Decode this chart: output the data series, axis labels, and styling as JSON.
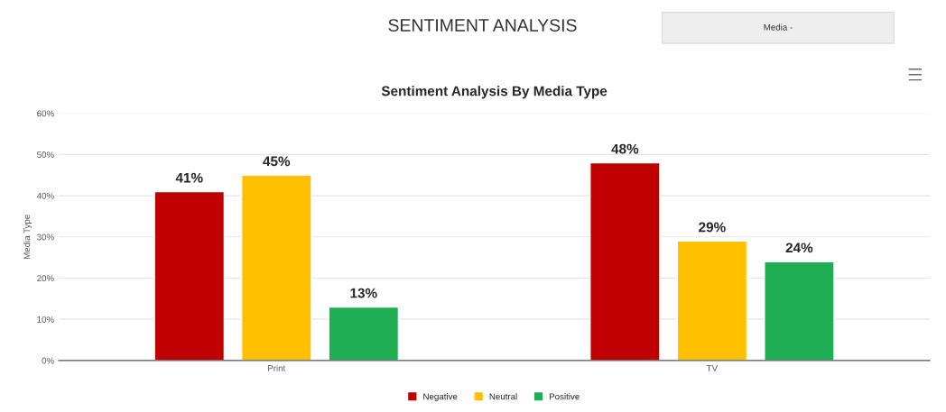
{
  "chart_data": {
    "type": "bar",
    "title": "SENTIMENT ANALYSIS",
    "subtitle": "Sentiment Analysis By Media Type",
    "ylabel": "Media Type",
    "categories": [
      "Print",
      "TV"
    ],
    "series": [
      {
        "name": "Negative",
        "color": "#c00000",
        "values": [
          41,
          48
        ]
      },
      {
        "name": "Neutral",
        "color": "#ffc000",
        "values": [
          45,
          29
        ]
      },
      {
        "name": "Positive",
        "color": "#1fae54",
        "values": [
          13,
          24
        ]
      }
    ],
    "ylim": [
      0,
      60
    ],
    "yticks": [
      {
        "value": 0,
        "label": "0%"
      },
      {
        "value": 10,
        "label": "10%"
      },
      {
        "value": 20,
        "label": "20%"
      },
      {
        "value": 30,
        "label": "30%"
      },
      {
        "value": 40,
        "label": "40%"
      },
      {
        "value": 50,
        "label": "50%"
      },
      {
        "value": 60,
        "label": "60%"
      }
    ],
    "value_labels": [
      [
        "41%",
        "48%"
      ],
      [
        "45%",
        "29%"
      ],
      [
        "13%",
        "24%"
      ]
    ],
    "grid": "y",
    "legend": "bottom",
    "annotations": [
      "Media -"
    ]
  }
}
